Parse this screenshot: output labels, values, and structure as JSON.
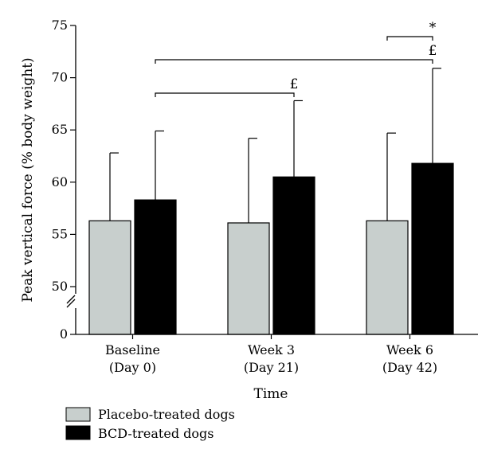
{
  "chart_data": {
    "type": "bar",
    "title": "",
    "xlabel": "Time",
    "ylabel": "Peak vertical force (% body weight)",
    "ylim": [
      45,
      75
    ],
    "axis_break": true,
    "y_ticks": [
      0,
      50,
      55,
      60,
      65,
      70,
      75
    ],
    "categories": [
      {
        "line1": "Baseline",
        "line2": "(Day 0)"
      },
      {
        "line1": "Week 3",
        "line2": "(Day 21)"
      },
      {
        "line1": "Week 6",
        "line2": "(Day 42)"
      }
    ],
    "series": [
      {
        "name": "Placebo-treated dogs",
        "color": "#c8cfcd",
        "values": [
          56.3,
          56.1,
          56.3
        ],
        "error_upper": [
          62.8,
          64.2,
          64.7
        ]
      },
      {
        "name": "BCD-treated dogs",
        "color": "#000000",
        "values": [
          58.3,
          60.5,
          61.8
        ],
        "error_upper": [
          64.9,
          67.8,
          70.9
        ]
      }
    ],
    "significance": [
      {
        "label": "£",
        "from": [
          0,
          1
        ],
        "to": [
          1,
          1
        ]
      },
      {
        "label": "£",
        "from": [
          0,
          1
        ],
        "to": [
          2,
          1
        ]
      },
      {
        "label": "*",
        "from": [
          2,
          0
        ],
        "to": [
          2,
          1
        ]
      }
    ],
    "legend_position": "bottom-left",
    "grid": false
  }
}
